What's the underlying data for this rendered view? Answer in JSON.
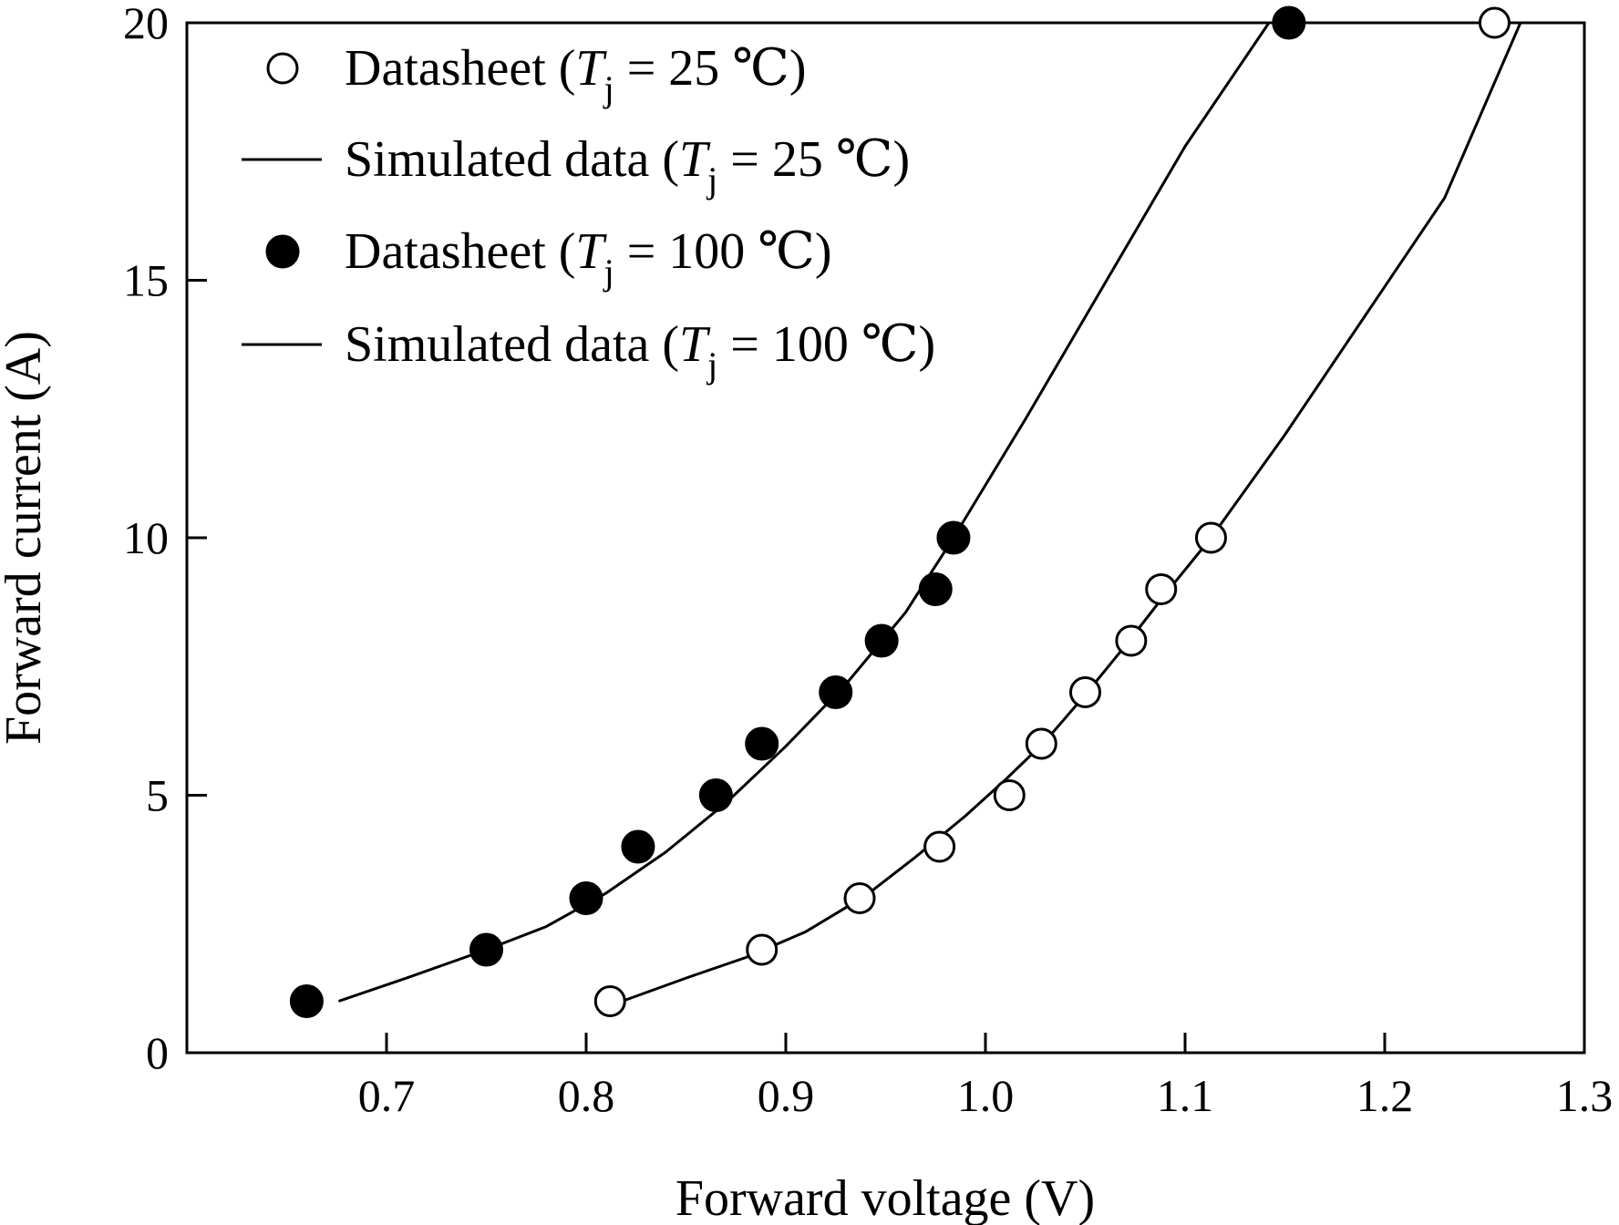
{
  "chart_data": {
    "type": "scatter",
    "title": "",
    "xlabel": "Forward voltage (V)",
    "ylabel": "Forward current (A)",
    "xlim": [
      0.6,
      1.3
    ],
    "ylim": [
      0,
      20
    ],
    "x_ticks": [
      "0.7",
      "0.8",
      "0.9",
      "1.0",
      "1.1",
      "1.2",
      "1.3"
    ],
    "y_ticks": [
      "0",
      "5",
      "10",
      "15",
      "20"
    ],
    "grid": false,
    "legend_position": "top-left",
    "legend": [
      {
        "marker": "open-circle",
        "prefix": "Datasheet (",
        "var": "T",
        "sub": "j",
        "suffix": " = 25 ℃)"
      },
      {
        "marker": "line",
        "prefix": "Simulated data (",
        "var": "T",
        "sub": "j",
        "suffix": " = 25 ℃)"
      },
      {
        "marker": "filled-circle",
        "prefix": "Datasheet (",
        "var": "T",
        "sub": "j",
        "suffix": " = 100 ℃)"
      },
      {
        "marker": "line",
        "prefix": "Simulated data (",
        "var": "T",
        "sub": "j",
        "suffix": " = 100 ℃)"
      }
    ],
    "series": [
      {
        "name": "Datasheet (Tj = 25 ℃)",
        "kind": "markers",
        "marker": "open-circle",
        "x": [
          0.812,
          0.888,
          0.937,
          0.977,
          1.012,
          1.028,
          1.05,
          1.073,
          1.088,
          1.113,
          1.255
        ],
        "y": [
          1,
          2,
          3,
          4,
          5,
          6,
          7,
          8,
          9,
          10,
          20
        ]
      },
      {
        "name": "Simulated data (Tj = 25 ℃)",
        "kind": "line",
        "x": [
          0.818,
          0.85,
          0.88,
          0.91,
          0.94,
          0.965,
          0.99,
          1.01,
          1.03,
          1.05,
          1.07,
          1.09,
          1.113,
          1.15,
          1.19,
          1.23,
          1.268
        ],
        "y": [
          1.0,
          1.45,
          1.85,
          2.35,
          3.05,
          3.8,
          4.6,
          5.3,
          6.05,
          6.95,
          7.9,
          8.9,
          10.0,
          12.0,
          14.3,
          16.6,
          20.0
        ]
      },
      {
        "name": "Datasheet (Tj = 100 ℃)",
        "kind": "markers",
        "marker": "filled-circle",
        "x": [
          0.66,
          0.75,
          0.8,
          0.826,
          0.865,
          0.888,
          0.925,
          0.948,
          0.975,
          0.984,
          1.152
        ],
        "y": [
          1,
          2,
          3,
          4,
          5,
          6,
          7,
          8,
          9,
          10,
          20
        ]
      },
      {
        "name": "Simulated data (Tj = 100 ℃)",
        "kind": "line",
        "x": [
          0.676,
          0.71,
          0.75,
          0.78,
          0.81,
          0.84,
          0.87,
          0.9,
          0.93,
          0.96,
          0.984,
          1.02,
          1.06,
          1.1,
          1.142
        ],
        "y": [
          1.0,
          1.45,
          2.0,
          2.45,
          3.1,
          3.9,
          4.85,
          5.95,
          7.15,
          8.55,
          10.0,
          12.3,
          14.95,
          17.6,
          20.0
        ]
      }
    ]
  }
}
